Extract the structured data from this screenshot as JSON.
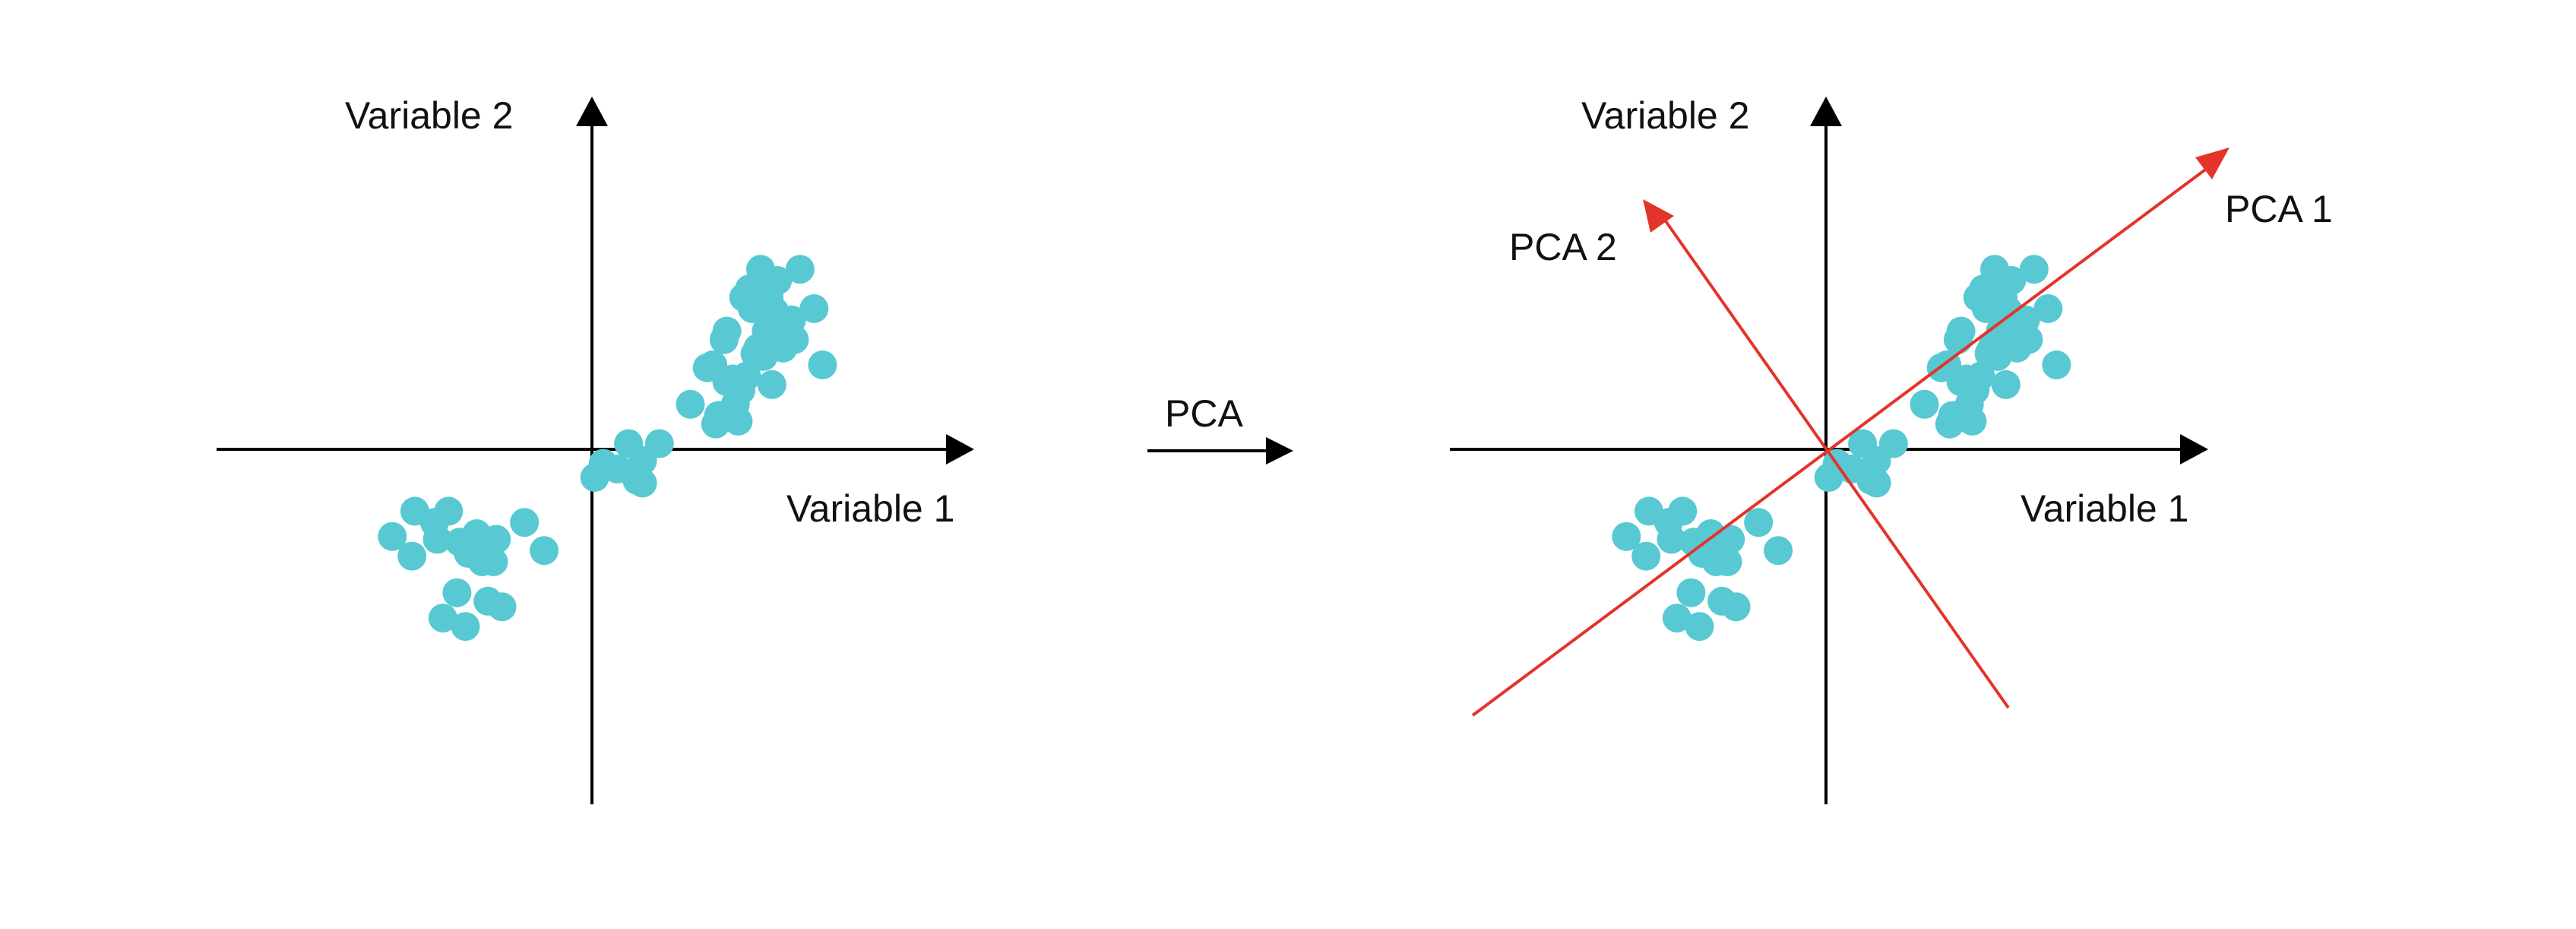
{
  "colors": {
    "point": "#58c9d3",
    "axis": "#000000",
    "pca_axis": "#e3342a",
    "text": "#111111",
    "background": "#ffffff"
  },
  "left_plot": {
    "x_label": "Variable 1",
    "y_label": "Variable 2"
  },
  "transform_arrow": {
    "label": "PCA"
  },
  "right_plot": {
    "x_label": "Variable 1",
    "y_label": "Variable 2",
    "pca1_label": "PCA 1",
    "pca2_label": "PCA 2"
  },
  "chart_data": {
    "type": "scatter",
    "series": [
      {
        "x": [
          4.7,
          4.3,
          6.0,
          6.3,
          6.5,
          6.1,
          5.3,
          7.4,
          7.9,
          7.2,
          8.2,
          5.1,
          4.5,
          6.7,
          5.4,
          3.5,
          5.2,
          6.2,
          5.7,
          4.8,
          6.6,
          6.8,
          4.4,
          5.9,
          7.1,
          5.0,
          4.1,
          6.4,
          5.8,
          5.5,
          5.6,
          6.1,
          4.8,
          5.3,
          2.4,
          1.8,
          1.3,
          0.9,
          1.6,
          0.4,
          0.1,
          1.8
        ],
        "y": [
          3.9,
          3.0,
          6.4,
          5.4,
          4.9,
          3.3,
          2.2,
          6.4,
          5.0,
          3.9,
          3.0,
          1.6,
          1.2,
          4.4,
          5.4,
          1.6,
          1.0,
          4.2,
          5.0,
          4.2,
          6.0,
          3.6,
          0.9,
          3.6,
          4.6,
          2.5,
          2.9,
          2.3,
          3.4,
          2.6,
          5.7,
          6.1,
          2.4,
          2.1,
          0.2,
          -0.4,
          0.2,
          -0.7,
          -1.1,
          -0.5,
          -1.0,
          -1.2
        ]
      },
      {
        "x": [
          -6.3,
          -5.6,
          -5.1,
          -5.5,
          -4.4,
          -4.1,
          -3.4,
          -2.4,
          -1.7,
          -3.5,
          -4.1,
          -3.9,
          -4.7,
          -6.4,
          -7.1,
          -3.7,
          -4.8,
          -5.3,
          -4.5,
          -3.2
        ],
        "y": [
          -2.2,
          -2.6,
          -2.2,
          -3.2,
          -3.7,
          -3.0,
          -3.2,
          -2.6,
          -3.6,
          -4.0,
          -3.7,
          -4.0,
          -3.3,
          -3.8,
          -3.1,
          -5.4,
          -5.1,
          -6.0,
          -6.3,
          -5.6
        ]
      }
    ]
  }
}
